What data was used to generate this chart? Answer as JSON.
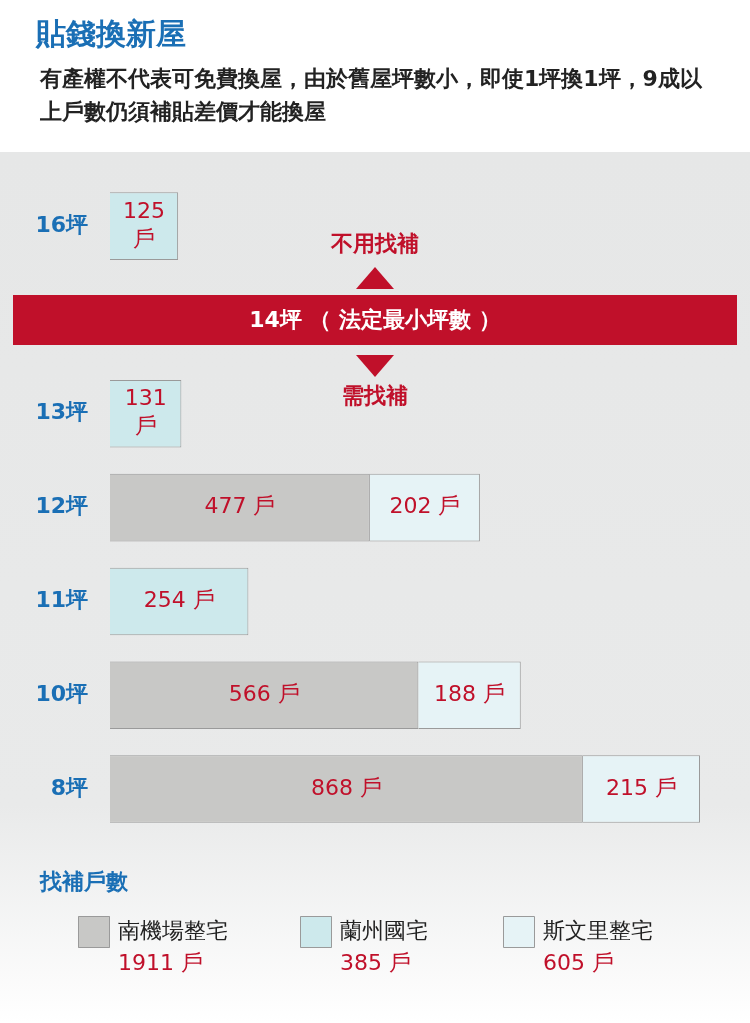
{
  "chart_data": {
    "type": "bar",
    "orientation": "horizontal",
    "stacked": true,
    "title": "貼錢換新屋",
    "subtitle": "有產權不代表可免費換屋，由於舊屋坪數小，即使1坪換1坪，9成以上戶數仍須補貼差價才能換屋",
    "categories": [
      "16坪",
      null,
      "13坪",
      "12坪",
      "11坪",
      "10坪",
      "8坪"
    ],
    "series": [
      {
        "name": "南機場整宅",
        "color": "#c8c8c6",
        "values": [
          null,
          null,
          null,
          477,
          null,
          566,
          868
        ],
        "value_labels": [
          null,
          null,
          null,
          "477 戶",
          null,
          "566 戶",
          "868 戶"
        ]
      },
      {
        "name": "蘭州國宅",
        "color": "#cde9ec",
        "values": [
          125,
          null,
          131,
          null,
          254,
          null,
          null
        ],
        "value_labels": [
          "125 戶",
          null,
          "131 戶",
          null,
          "254 戶",
          null,
          null
        ]
      },
      {
        "name": "斯文里整宅",
        "color": "#e6f3f6",
        "values": [
          null,
          null,
          null,
          202,
          null,
          188,
          215
        ],
        "value_labels": [
          null,
          null,
          null,
          "202 戶",
          null,
          "188 戶",
          "215 戶"
        ]
      }
    ],
    "legend": "bottom",
    "legend_title": "找補戶數",
    "annotations": [
      "14坪 （ 法定最小坪數 ）",
      "不用找補",
      "需找補",
      "1911 戶",
      "385 戶",
      "605 戶"
    ],
    "grid": false
  }
}
